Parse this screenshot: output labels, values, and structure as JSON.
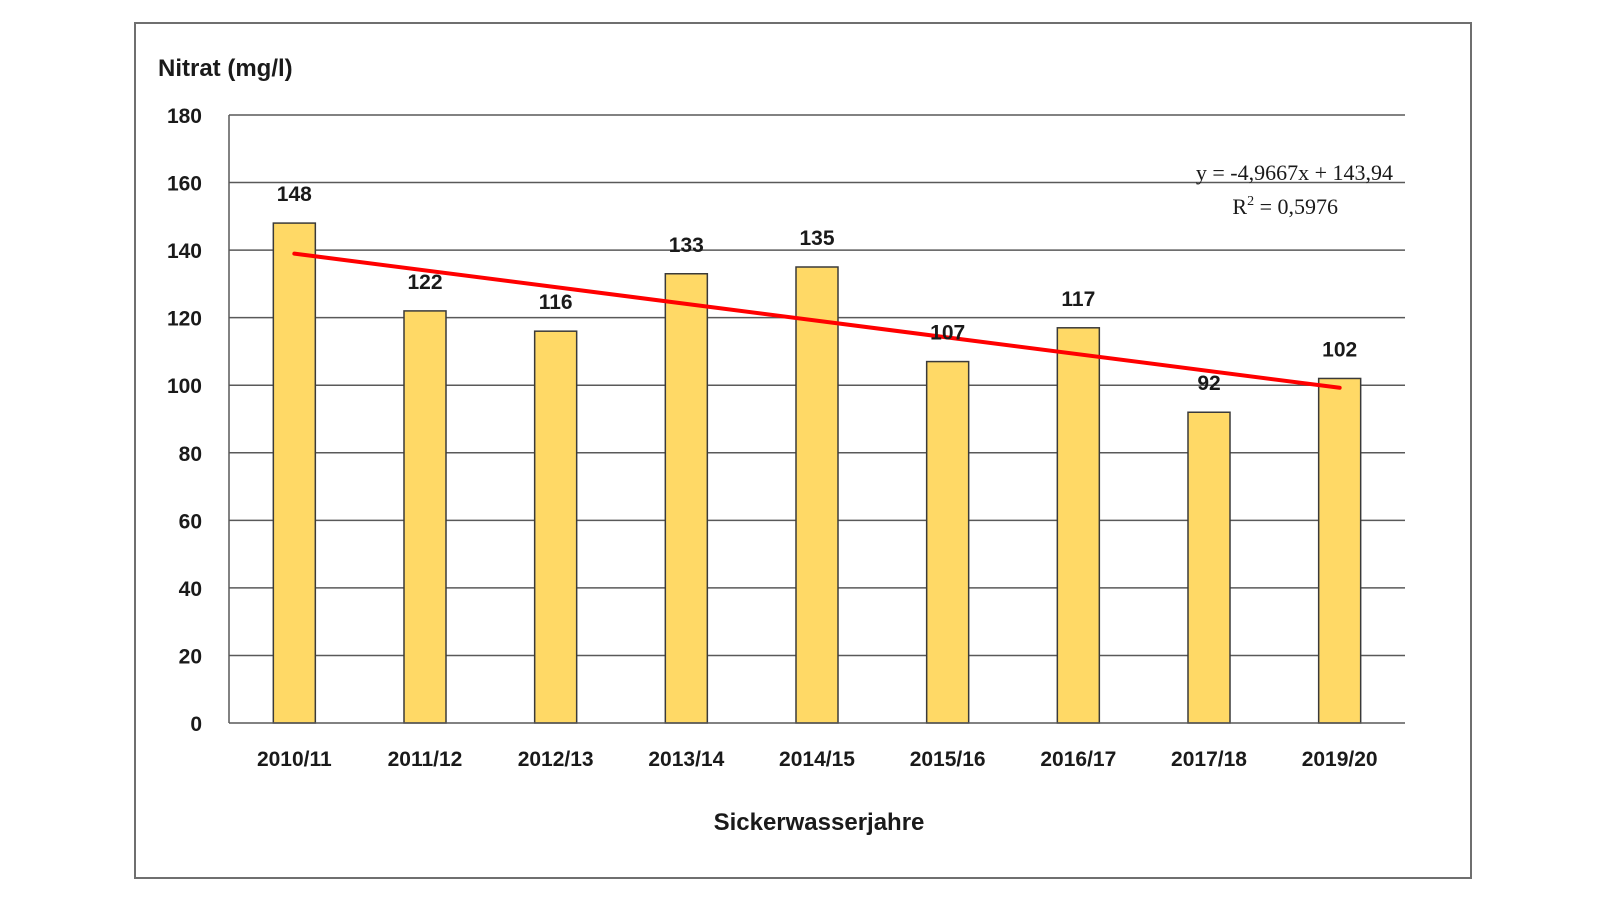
{
  "chart_data": {
    "type": "bar",
    "ylabel": "Nitrat (mg/l)",
    "xlabel": "Sickerwasserjahre",
    "categories": [
      "2010/11",
      "2011/12",
      "2012/13",
      "2013/14",
      "2014/15",
      "2015/16",
      "2016/17",
      "2017/18",
      "2019/20"
    ],
    "values": [
      148,
      122,
      116,
      133,
      135,
      107,
      117,
      92,
      102
    ],
    "ylim": [
      0,
      180
    ],
    "yticks": [
      0,
      20,
      40,
      60,
      80,
      100,
      120,
      140,
      160,
      180
    ],
    "grid": true,
    "trendline": {
      "type": "linear",
      "slope": -4.9667,
      "intercept": 143.94,
      "equation_label": "y = -4,9667x + 143,94",
      "r2_prefix": "R",
      "r2_exp": "2",
      "r2_value": " = 0,5976"
    },
    "colors": {
      "bar_fill": "#FFD966",
      "bar_stroke": "#3a3a3a",
      "trendline": "#FF0000",
      "grid": "#595959",
      "axis": "#595959"
    }
  }
}
